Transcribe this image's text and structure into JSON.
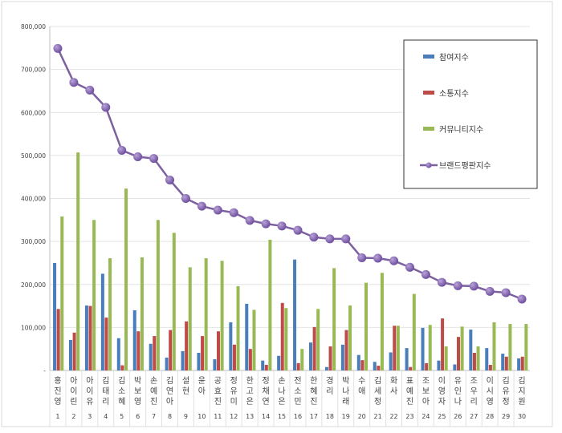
{
  "chart_data": {
    "type": "bar",
    "title": "",
    "xlabel": "",
    "ylabel": "",
    "ylim": [
      0,
      800000
    ],
    "yticks": [
      "-",
      "100,000",
      "200,000",
      "300,000",
      "400,000",
      "500,000",
      "600,000",
      "700,000",
      "800,000"
    ],
    "grid": true,
    "legend_placement": "top-right",
    "categories": [
      "홍진영",
      "아이린",
      "아이유",
      "김태리",
      "김소혜",
      "박보영",
      "손예진",
      "김연아",
      "설현",
      "윤아",
      "공효진",
      "정유미",
      "한고은",
      "정채연",
      "손나은",
      "전소민",
      "한혜진",
      "경리",
      "박나래",
      "수애",
      "김세정",
      "화사",
      "표예진",
      "조보아",
      "이영자",
      "유인나",
      "조우리",
      "이시영",
      "김유정",
      "김지원"
    ],
    "ranks": [
      "1",
      "2",
      "3",
      "4",
      "5",
      "6",
      "7",
      "8",
      "9",
      "10",
      "11",
      "12",
      "13",
      "14",
      "15",
      "16",
      "17",
      "18",
      "19",
      "20",
      "21",
      "22",
      "23",
      "24",
      "25",
      "26",
      "27",
      "28",
      "29",
      "30"
    ],
    "series": [
      {
        "name": "참여지수",
        "type": "bar",
        "color": "#4a7ebb",
        "values": [
          250000,
          71000,
          151000,
          225000,
          75000,
          140000,
          62000,
          30000,
          45000,
          41000,
          26000,
          112000,
          155000,
          23000,
          34000,
          258000,
          65000,
          8000,
          60000,
          36000,
          20000,
          42000,
          52000,
          99000,
          23000,
          14000,
          95000,
          52000,
          39000,
          28000
        ]
      },
      {
        "name": "소통지수",
        "type": "bar",
        "color": "#be4b48",
        "values": [
          143000,
          88000,
          150000,
          123000,
          12000,
          91000,
          80000,
          94000,
          114000,
          80000,
          91000,
          60000,
          50000,
          13000,
          157000,
          17000,
          101000,
          56000,
          94000,
          24000,
          11000,
          104000,
          8000,
          17000,
          121000,
          78000,
          41000,
          13000,
          32000,
          32000
        ]
      },
      {
        "name": "커뮤니티지수",
        "type": "bar",
        "color": "#98b954",
        "values": [
          358000,
          507000,
          350000,
          261000,
          423000,
          263000,
          350000,
          320000,
          240000,
          261000,
          255000,
          196000,
          141000,
          304000,
          145000,
          50000,
          143000,
          238000,
          151000,
          204000,
          227000,
          104000,
          178000,
          106000,
          56000,
          102000,
          56000,
          112000,
          108000,
          108000
        ]
      },
      {
        "name": "브랜드평판지수",
        "type": "line",
        "color": "#7d60a0",
        "values": [
          749000,
          670000,
          652000,
          612000,
          512000,
          497000,
          493000,
          443000,
          400000,
          382000,
          373000,
          367000,
          349000,
          341000,
          336000,
          326000,
          310000,
          306000,
          306000,
          262000,
          261000,
          255000,
          240000,
          223000,
          205000,
          197000,
          196000,
          184000,
          181000,
          166000
        ]
      }
    ]
  }
}
